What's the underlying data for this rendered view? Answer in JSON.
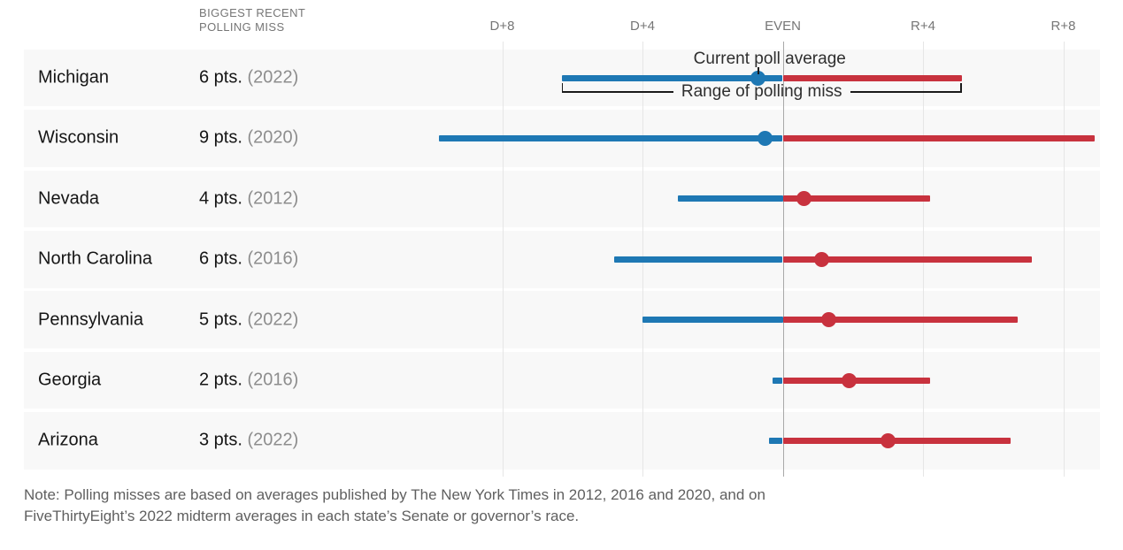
{
  "header": {
    "column_label_line1": "BIGGEST RECENT",
    "column_label_line2": "POLLING MISS"
  },
  "annotations": {
    "poll_average": "Current poll average",
    "range": "Range of polling miss"
  },
  "note": {
    "line1": "Note: Polling misses are based on averages published by The New York Times in 2012, 2016 and 2020, and on",
    "line2": "FiveThirtyEight’s 2022 midterm averages in each state’s Senate or governor’s race."
  },
  "colors": {
    "dem_blue": "#1e78b4",
    "rep_red": "#c8323e",
    "row_background": "#f8f8f8",
    "gridline": "#e6e6e6",
    "even_line": "#a9a9a9",
    "muted_text": "#767676",
    "note_text": "#5f5f5f"
  },
  "chart_data": {
    "type": "dot-range",
    "description": "Current poll average with symmetric range of recent polling miss, by state. Values in percentage points; negative = Democratic lead (D), positive = Republican lead (R).",
    "x_axis": {
      "ticks": [
        "D+8",
        "D+4",
        "EVEN",
        "R+4",
        "R+8"
      ],
      "values": [
        -8,
        -4,
        0,
        4,
        8
      ],
      "range": [
        -10.3,
        9.7
      ],
      "grid": true
    },
    "rows": [
      {
        "state": "Michigan",
        "miss_pts": "6 pts.",
        "miss_year": "(2022)",
        "avg": -0.7,
        "range_d": -6.3,
        "range_r": 5.1,
        "dot_side": "dem"
      },
      {
        "state": "Wisconsin",
        "miss_pts": "9 pts.",
        "miss_year": "(2020)",
        "avg": -0.5,
        "range_d": -9.8,
        "range_r": 8.9,
        "dot_side": "dem"
      },
      {
        "state": "Nevada",
        "miss_pts": "4 pts.",
        "miss_year": "(2012)",
        "avg": 0.6,
        "range_d": -3.0,
        "range_r": 4.2,
        "dot_side": "rep"
      },
      {
        "state": "North Carolina",
        "miss_pts": "6 pts.",
        "miss_year": "(2016)",
        "avg": 1.1,
        "range_d": -4.8,
        "range_r": 7.1,
        "dot_side": "rep"
      },
      {
        "state": "Pennsylvania",
        "miss_pts": "5 pts.",
        "miss_year": "(2022)",
        "avg": 1.3,
        "range_d": -4.0,
        "range_r": 6.7,
        "dot_side": "rep"
      },
      {
        "state": "Georgia",
        "miss_pts": "2 pts.",
        "miss_year": "(2016)",
        "avg": 1.9,
        "range_d": -0.3,
        "range_r": 4.2,
        "dot_side": "rep"
      },
      {
        "state": "Arizona",
        "miss_pts": "3 pts.",
        "miss_year": "(2022)",
        "avg": 3.0,
        "range_d": -0.4,
        "range_r": 6.5,
        "dot_side": "rep"
      }
    ]
  }
}
